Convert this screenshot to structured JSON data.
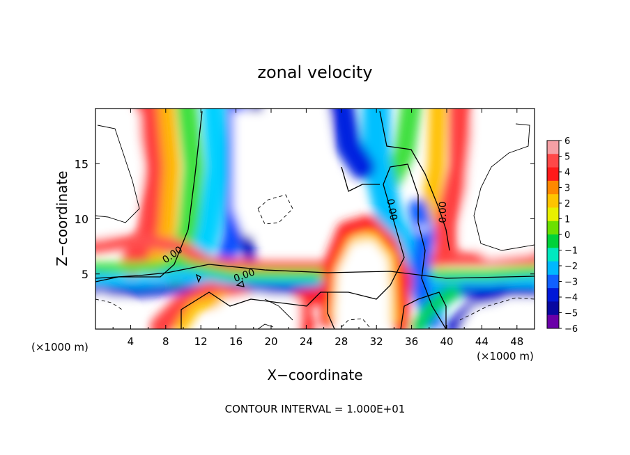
{
  "chart_data": {
    "type": "heatmap",
    "title": "zonal velocity",
    "xlabel": "X−coordinate",
    "ylabel": "Z−coordinate",
    "x_unit_left": "(×1000 m)",
    "x_unit_right": "(×1000 m)",
    "footer": "CONTOUR INTERVAL = 1.000E+01",
    "xlim": [
      0,
      50
    ],
    "ylim": [
      0,
      20
    ],
    "x_ticks": [
      "4",
      "8",
      "12",
      "16",
      "20",
      "24",
      "28",
      "32",
      "36",
      "40",
      "44",
      "48"
    ],
    "y_ticks": [
      "5",
      "10",
      "15"
    ],
    "colorbar": {
      "ticks": [
        "6",
        "5",
        "4",
        "3",
        "2",
        "1",
        "0",
        "−1",
        "−2",
        "−3",
        "−4",
        "−5",
        "−6"
      ],
      "range": [
        -6,
        6
      ]
    },
    "contour_labels": [
      "0.00",
      "0.00",
      "0.00",
      "0.00"
    ]
  }
}
